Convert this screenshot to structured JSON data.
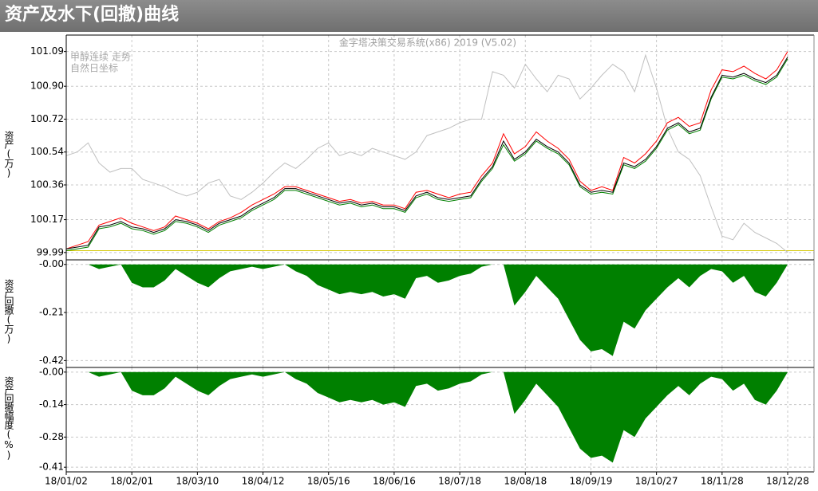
{
  "title": "资产及水下(回撤)曲线",
  "chart_data": [
    {
      "type": "line",
      "subtitle": "金字塔决策交易系统(x86) 2019 (V5.02)",
      "y_label": "资产(万)",
      "annotation": "自然日坐标",
      "ylim": [
        99.95,
        101.18
      ],
      "yticks": [
        99.99,
        100.17,
        100.36,
        100.54,
        100.72,
        {
          "value": 100.9,
          "label": "100.90"
        },
        101.09
      ],
      "grid": true,
      "reference_line": {
        "value": 100.0,
        "color": "#d4c800"
      },
      "series": [
        {
          "name": "甲醇连续 走势",
          "color": "#c0c0c0",
          "values": [
            100.52,
            100.54,
            100.59,
            100.48,
            100.43,
            100.45,
            100.45,
            100.39,
            100.37,
            100.35,
            100.32,
            100.3,
            100.32,
            100.37,
            100.39,
            100.3,
            100.28,
            100.32,
            100.37,
            100.43,
            100.48,
            100.45,
            100.5,
            100.56,
            100.59,
            100.52,
            100.54,
            100.52,
            100.56,
            100.54,
            100.52,
            100.5,
            100.54,
            100.63,
            100.65,
            100.67,
            100.7,
            100.72,
            100.72,
            100.98,
            100.96,
            100.89,
            101.02,
            100.94,
            100.87,
            100.96,
            100.94,
            100.83,
            100.89,
            100.96,
            101.02,
            100.98,
            100.87,
            101.07,
            100.89,
            100.67,
            100.54,
            100.5,
            100.41,
            100.24,
            100.08,
            100.06,
            100.15,
            100.1,
            100.07,
            100.04,
            99.99
          ]
        },
        {
          "color": "#ff0000",
          "values": [
            100.01,
            100.03,
            100.05,
            100.14,
            100.16,
            100.18,
            100.15,
            100.13,
            100.11,
            100.13,
            100.19,
            100.17,
            100.15,
            100.12,
            100.16,
            100.18,
            100.21,
            100.25,
            100.28,
            100.31,
            100.35,
            100.35,
            100.33,
            100.31,
            100.29,
            100.27,
            100.28,
            100.26,
            100.27,
            100.25,
            100.25,
            100.23,
            100.32,
            100.33,
            100.31,
            100.29,
            100.31,
            100.32,
            100.41,
            100.48,
            100.64,
            100.53,
            100.57,
            100.65,
            100.6,
            100.56,
            100.5,
            100.38,
            100.33,
            100.35,
            100.33,
            100.51,
            100.48,
            100.53,
            100.6,
            100.7,
            100.73,
            100.68,
            100.7,
            100.88,
            100.99,
            100.98,
            101.01,
            100.97,
            100.94,
            100.99,
            101.09
          ]
        },
        {
          "color": "#008000",
          "values": [
            100.0,
            100.01,
            100.02,
            100.12,
            100.13,
            100.15,
            100.12,
            100.11,
            100.09,
            100.11,
            100.16,
            100.15,
            100.13,
            100.1,
            100.14,
            100.16,
            100.18,
            100.22,
            100.25,
            100.28,
            100.33,
            100.33,
            100.31,
            100.29,
            100.27,
            100.25,
            100.26,
            100.24,
            100.25,
            100.23,
            100.23,
            100.21,
            100.29,
            100.31,
            100.28,
            100.27,
            100.28,
            100.29,
            100.38,
            100.45,
            100.58,
            100.49,
            100.53,
            100.6,
            100.56,
            100.53,
            100.47,
            100.35,
            100.31,
            100.32,
            100.31,
            100.47,
            100.45,
            100.49,
            100.56,
            100.66,
            100.69,
            100.64,
            100.66,
            100.83,
            100.95,
            100.94,
            100.96,
            100.93,
            100.91,
            100.95,
            101.05
          ]
        },
        {
          "color": "#000000",
          "values": [
            100.01,
            100.02,
            100.03,
            100.13,
            100.14,
            100.16,
            100.13,
            100.12,
            100.1,
            100.12,
            100.17,
            100.16,
            100.14,
            100.11,
            100.15,
            100.17,
            100.19,
            100.23,
            100.26,
            100.29,
            100.34,
            100.34,
            100.32,
            100.3,
            100.28,
            100.26,
            100.27,
            100.25,
            100.26,
            100.24,
            100.24,
            100.22,
            100.3,
            100.32,
            100.29,
            100.28,
            100.29,
            100.3,
            100.39,
            100.46,
            100.6,
            100.5,
            100.54,
            100.61,
            100.57,
            100.54,
            100.48,
            100.36,
            100.32,
            100.33,
            100.32,
            100.48,
            100.46,
            100.5,
            100.57,
            100.67,
            100.7,
            100.65,
            100.67,
            100.84,
            100.96,
            100.95,
            100.97,
            100.94,
            100.92,
            100.96,
            101.06
          ]
        }
      ]
    },
    {
      "type": "area",
      "y_label": "资产回撤(万)",
      "ylim": [
        -0.45,
        0.02
      ],
      "yticks": [
        -0.42,
        -0.21,
        {
          "value": 0,
          "label": "-0.00"
        }
      ],
      "grid": true,
      "series": [
        {
          "color": "#008000",
          "values": [
            0,
            0,
            0,
            -0.02,
            -0.01,
            0,
            -0.08,
            -0.1,
            -0.1,
            -0.07,
            -0.02,
            -0.05,
            -0.08,
            -0.1,
            -0.06,
            -0.03,
            -0.02,
            -0.01,
            -0.02,
            -0.01,
            0,
            -0.03,
            -0.05,
            -0.09,
            -0.11,
            -0.13,
            -0.12,
            -0.13,
            -0.12,
            -0.14,
            -0.13,
            -0.15,
            -0.06,
            -0.05,
            -0.08,
            -0.07,
            -0.05,
            -0.04,
            -0.01,
            0,
            0,
            -0.18,
            -0.12,
            -0.05,
            -0.1,
            -0.15,
            -0.24,
            -0.33,
            -0.38,
            -0.37,
            -0.4,
            -0.25,
            -0.28,
            -0.2,
            -0.15,
            -0.1,
            -0.06,
            -0.1,
            -0.05,
            -0.02,
            -0.03,
            -0.08,
            -0.05,
            -0.12,
            -0.14,
            -0.08,
            0
          ]
        }
      ]
    },
    {
      "type": "area",
      "y_label": "资产回撤幅度(%)",
      "ylim": [
        -0.43,
        0.02
      ],
      "yticks": [
        -0.41,
        -0.28,
        -0.14,
        {
          "value": 0,
          "label": "-0.00"
        }
      ],
      "grid": true,
      "categories": [
        "18/01/02",
        null,
        null,
        null,
        null,
        null,
        "18/02/01",
        null,
        null,
        null,
        null,
        null,
        "18/03/10",
        null,
        null,
        null,
        null,
        null,
        "18/04/12",
        null,
        null,
        null,
        null,
        null,
        "18/05/16",
        null,
        null,
        null,
        null,
        null,
        "18/06/16",
        null,
        null,
        null,
        null,
        null,
        "18/07/18",
        null,
        null,
        null,
        null,
        null,
        "18/08/18",
        null,
        null,
        null,
        null,
        null,
        "18/09/19",
        null,
        null,
        null,
        null,
        null,
        "18/10/27",
        null,
        null,
        null,
        null,
        null,
        "18/11/28",
        null,
        null,
        null,
        null,
        null,
        "18/12/28"
      ],
      "series": [
        {
          "color": "#008000",
          "values": [
            0,
            0,
            0,
            -0.02,
            -0.01,
            0,
            -0.08,
            -0.1,
            -0.1,
            -0.07,
            -0.02,
            -0.05,
            -0.08,
            -0.1,
            -0.06,
            -0.03,
            -0.02,
            -0.01,
            -0.02,
            -0.01,
            0,
            -0.03,
            -0.05,
            -0.09,
            -0.11,
            -0.13,
            -0.12,
            -0.13,
            -0.12,
            -0.14,
            -0.13,
            -0.15,
            -0.06,
            -0.05,
            -0.08,
            -0.07,
            -0.05,
            -0.04,
            -0.01,
            0,
            0,
            -0.18,
            -0.12,
            -0.05,
            -0.1,
            -0.15,
            -0.24,
            -0.33,
            -0.37,
            -0.36,
            -0.39,
            -0.25,
            -0.28,
            -0.2,
            -0.15,
            -0.1,
            -0.06,
            -0.1,
            -0.05,
            -0.02,
            -0.03,
            -0.08,
            -0.05,
            -0.12,
            -0.14,
            -0.08,
            0
          ]
        }
      ]
    }
  ]
}
